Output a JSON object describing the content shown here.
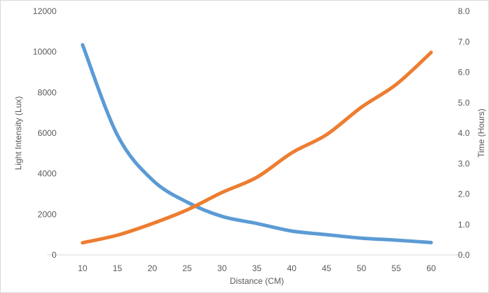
{
  "chart_data": {
    "type": "line",
    "title": "",
    "xlabel": "Distance (CM)",
    "ylabel": "Light Intensity (Lux)",
    "y2label": "Time (Hours)",
    "x": [
      10,
      15,
      20,
      25,
      30,
      35,
      40,
      45,
      50,
      55,
      60
    ],
    "x_tick_labels": [
      "10",
      "15",
      "20",
      "25",
      "30",
      "35",
      "40",
      "45",
      "50",
      "55",
      "60"
    ],
    "ylim": [
      0,
      12000
    ],
    "y_tick_labels": [
      "0",
      "2000",
      "4000",
      "6000",
      "8000",
      "10000",
      "12000"
    ],
    "y2lim": [
      0,
      8
    ],
    "y2_tick_labels": [
      "0.0",
      "1.0",
      "2.0",
      "3.0",
      "4.0",
      "5.0",
      "6.0",
      "7.0",
      "8.0"
    ],
    "grid": false,
    "legend": "none",
    "series": [
      {
        "axis": "left",
        "color": "#5b9bd5",
        "values": [
          10350,
          5900,
          3700,
          2600,
          1900,
          1550,
          1180,
          1000,
          830,
          730,
          610
        ]
      },
      {
        "axis": "right",
        "color": "#ed7d31",
        "values": [
          0.4,
          0.65,
          1.03,
          1.48,
          2.05,
          2.55,
          3.35,
          3.95,
          4.85,
          5.6,
          6.65
        ]
      }
    ]
  }
}
